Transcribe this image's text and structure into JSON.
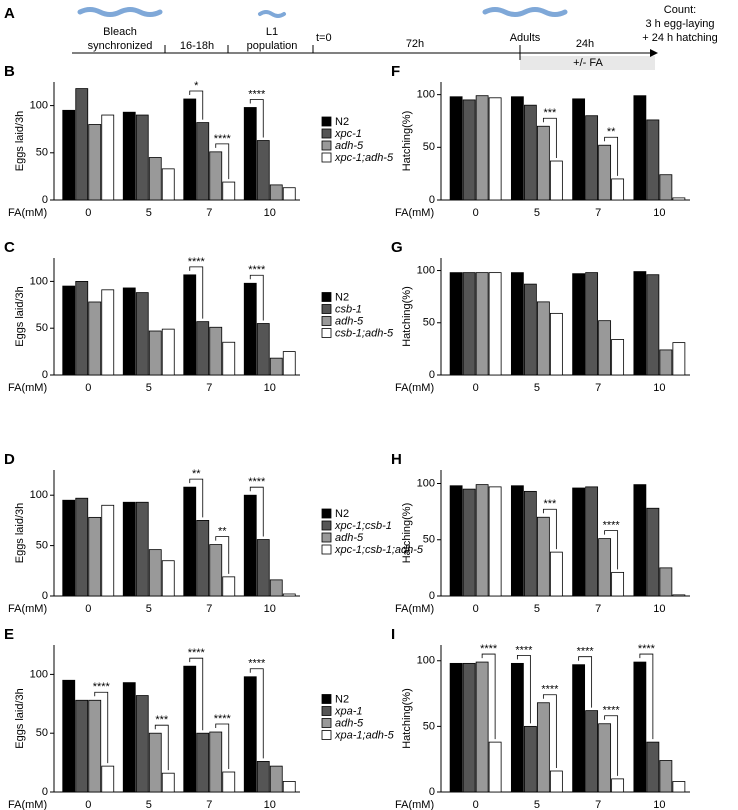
{
  "timeline": {
    "label": "A",
    "bleach": "Bleach",
    "synchronized": "synchronized",
    "span1": "16-18h",
    "l1": "L1",
    "population": "population",
    "t0": "t=0",
    "span2": "72h",
    "adults": "Adults",
    "span3": "24h",
    "fa": "+/- FA",
    "count": "Count:",
    "count2": "3 h egg-laying",
    "count3": "+ 24 h hatching"
  },
  "chart_data": [
    {
      "type": "bar",
      "panel": "B",
      "ylabel": "Eggs laid/3h",
      "xlabel": "FA(mM)",
      "categories": [
        "0",
        "5",
        "7",
        "10"
      ],
      "ylim": [
        0,
        125
      ],
      "yticks": [
        0,
        50,
        100
      ],
      "series": [
        {
          "name": "N2",
          "color": "#000000",
          "values": [
            95,
            93,
            107,
            98
          ]
        },
        {
          "name": "xpc-1",
          "color": "#555555",
          "values": [
            118,
            90,
            82,
            63
          ]
        },
        {
          "name": "adh-5",
          "color": "#999999",
          "values": [
            80,
            45,
            51,
            16
          ]
        },
        {
          "name": "xpc-1;adh-5",
          "color": "#ffffff",
          "values": [
            90,
            33,
            19,
            13
          ]
        }
      ],
      "annotations": [
        {
          "text": "*",
          "category": 2,
          "pair": [
            0,
            1
          ]
        },
        {
          "text": "****",
          "category": 2,
          "pair": [
            2,
            3
          ]
        },
        {
          "text": "****",
          "category": 3,
          "pair": [
            0,
            1
          ]
        }
      ]
    },
    {
      "type": "bar",
      "panel": "C",
      "ylabel": "Eggs laid/3h",
      "xlabel": "FA(mM)",
      "categories": [
        "0",
        "5",
        "7",
        "10"
      ],
      "ylim": [
        0,
        125
      ],
      "yticks": [
        0,
        50,
        100
      ],
      "series": [
        {
          "name": "N2",
          "color": "#000000",
          "values": [
            95,
            93,
            107,
            98
          ]
        },
        {
          "name": "csb-1",
          "color": "#555555",
          "values": [
            100,
            88,
            57,
            55
          ]
        },
        {
          "name": "adh-5",
          "color": "#999999",
          "values": [
            78,
            47,
            51,
            18
          ]
        },
        {
          "name": "csb-1;adh-5",
          "color": "#ffffff",
          "values": [
            91,
            49,
            35,
            25
          ]
        }
      ],
      "annotations": [
        {
          "text": "****",
          "category": 2,
          "pair": [
            0,
            1
          ]
        },
        {
          "text": "****",
          "category": 3,
          "pair": [
            0,
            1
          ]
        }
      ]
    },
    {
      "type": "bar",
      "panel": "D",
      "ylabel": "Eggs laid/3h",
      "xlabel": "FA(mM)",
      "categories": [
        "0",
        "5",
        "7",
        "10"
      ],
      "ylim": [
        0,
        125
      ],
      "yticks": [
        0,
        50,
        100
      ],
      "series": [
        {
          "name": "N2",
          "color": "#000000",
          "values": [
            95,
            93,
            108,
            100
          ]
        },
        {
          "name": "xpc-1;csb-1",
          "color": "#555555",
          "values": [
            97,
            93,
            75,
            56
          ]
        },
        {
          "name": "adh-5",
          "color": "#999999",
          "values": [
            78,
            46,
            51,
            16
          ]
        },
        {
          "name": "xpc-1;csb-1;adh-5",
          "color": "#ffffff",
          "values": [
            90,
            35,
            19,
            2
          ]
        }
      ],
      "annotations": [
        {
          "text": "**",
          "category": 2,
          "pair": [
            0,
            1
          ]
        },
        {
          "text": "**",
          "category": 2,
          "pair": [
            2,
            3
          ]
        },
        {
          "text": "****",
          "category": 3,
          "pair": [
            0,
            1
          ]
        }
      ]
    },
    {
      "type": "bar",
      "panel": "E",
      "ylabel": "Eggs laid/3h",
      "xlabel": "FA(mM)",
      "categories": [
        "0",
        "5",
        "7",
        "10"
      ],
      "ylim": [
        0,
        125
      ],
      "yticks": [
        0,
        50,
        100
      ],
      "series": [
        {
          "name": "N2",
          "color": "#000000",
          "values": [
            95,
            93,
            107,
            98
          ]
        },
        {
          "name": "xpa-1",
          "color": "#555555",
          "values": [
            78,
            82,
            50,
            26
          ]
        },
        {
          "name": "adh-5",
          "color": "#999999",
          "values": [
            78,
            50,
            51,
            22
          ]
        },
        {
          "name": "xpa-1;adh-5",
          "color": "#ffffff",
          "values": [
            22,
            16,
            17,
            9
          ]
        }
      ],
      "annotations": [
        {
          "text": "****",
          "category": 0,
          "pair": [
            2,
            3
          ]
        },
        {
          "text": "***",
          "category": 1,
          "pair": [
            2,
            3
          ]
        },
        {
          "text": "****",
          "category": 2,
          "pair": [
            0,
            1
          ]
        },
        {
          "text": "****",
          "category": 2,
          "pair": [
            2,
            3
          ]
        },
        {
          "text": "****",
          "category": 3,
          "pair": [
            0,
            1
          ]
        }
      ]
    },
    {
      "type": "bar",
      "panel": "F",
      "ylabel": "Hatching(%)",
      "xlabel": "FA(mM)",
      "categories": [
        "0",
        "5",
        "7",
        "10"
      ],
      "ylim": [
        0,
        112
      ],
      "yticks": [
        0,
        50,
        100
      ],
      "series": [
        {
          "color": "#000000",
          "values": [
            98,
            98,
            96,
            99
          ]
        },
        {
          "color": "#555555",
          "values": [
            95,
            90,
            80,
            76
          ]
        },
        {
          "color": "#999999",
          "values": [
            99,
            70,
            52,
            24
          ]
        },
        {
          "color": "#ffffff",
          "values": [
            97,
            37,
            20,
            2
          ]
        }
      ],
      "annotations": [
        {
          "text": "***",
          "category": 1,
          "pair": [
            2,
            3
          ]
        },
        {
          "text": "**",
          "category": 2,
          "pair": [
            2,
            3
          ]
        }
      ]
    },
    {
      "type": "bar",
      "panel": "G",
      "ylabel": "Hatching(%)",
      "xlabel": "FA(mM)",
      "categories": [
        "0",
        "5",
        "7",
        "10"
      ],
      "ylim": [
        0,
        112
      ],
      "yticks": [
        0,
        50,
        100
      ],
      "series": [
        {
          "color": "#000000",
          "values": [
            98,
            98,
            97,
            99
          ]
        },
        {
          "color": "#555555",
          "values": [
            98,
            87,
            98,
            96
          ]
        },
        {
          "color": "#999999",
          "values": [
            98,
            70,
            52,
            24
          ]
        },
        {
          "color": "#ffffff",
          "values": [
            98,
            59,
            34,
            31
          ]
        }
      ],
      "annotations": []
    },
    {
      "type": "bar",
      "panel": "H",
      "ylabel": "Hatching(%)",
      "xlabel": "FA(mM)",
      "categories": [
        "0",
        "5",
        "7",
        "10"
      ],
      "ylim": [
        0,
        112
      ],
      "yticks": [
        0,
        50,
        100
      ],
      "series": [
        {
          "color": "#000000",
          "values": [
            98,
            98,
            96,
            99
          ]
        },
        {
          "color": "#555555",
          "values": [
            95,
            93,
            97,
            78
          ]
        },
        {
          "color": "#999999",
          "values": [
            99,
            70,
            51,
            25
          ]
        },
        {
          "color": "#ffffff",
          "values": [
            97,
            39,
            21,
            1
          ]
        }
      ],
      "annotations": [
        {
          "text": "***",
          "category": 1,
          "pair": [
            2,
            3
          ]
        },
        {
          "text": "****",
          "category": 2,
          "pair": [
            2,
            3
          ]
        }
      ]
    },
    {
      "type": "bar",
      "panel": "I",
      "ylabel": "Hatching(%)",
      "xlabel": "FA(mM)",
      "categories": [
        "0",
        "5",
        "7",
        "10"
      ],
      "ylim": [
        0,
        112
      ],
      "yticks": [
        0,
        50,
        100
      ],
      "series": [
        {
          "color": "#000000",
          "values": [
            98,
            98,
            97,
            99
          ]
        },
        {
          "color": "#555555",
          "values": [
            98,
            50,
            62,
            38
          ]
        },
        {
          "color": "#999999",
          "values": [
            99,
            68,
            52,
            24
          ]
        },
        {
          "color": "#ffffff",
          "values": [
            38,
            16,
            10,
            8
          ]
        }
      ],
      "annotations": [
        {
          "text": "****",
          "category": 0,
          "pair": [
            2,
            3
          ]
        },
        {
          "text": "****",
          "category": 1,
          "pair": [
            0,
            1
          ]
        },
        {
          "text": "****",
          "category": 1,
          "pair": [
            2,
            3
          ]
        },
        {
          "text": "****",
          "category": 2,
          "pair": [
            0,
            1
          ]
        },
        {
          "text": "****",
          "category": 2,
          "pair": [
            2,
            3
          ]
        },
        {
          "text": "****",
          "category": 3,
          "pair": [
            0,
            1
          ]
        }
      ]
    }
  ]
}
